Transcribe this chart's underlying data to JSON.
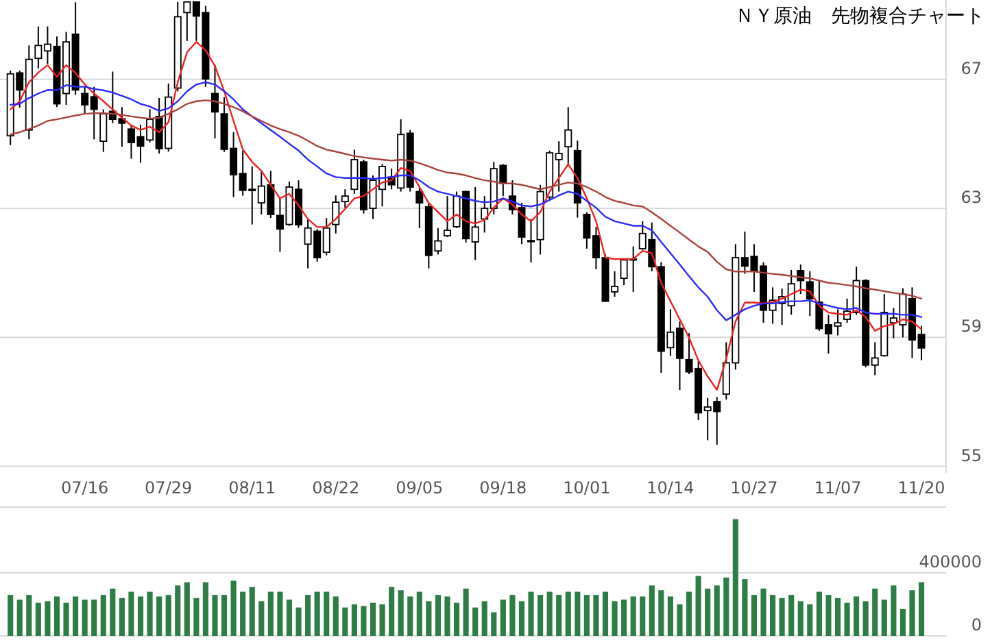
{
  "chart_data": [
    {
      "type": "candlestick",
      "title": "ＮＹ原油　先物複合チャート",
      "categories": [
        null,
        null,
        null,
        null,
        null,
        null,
        null,
        null,
        "07/16",
        null,
        null,
        null,
        null,
        null,
        null,
        null,
        null,
        "07/29",
        null,
        null,
        null,
        null,
        null,
        null,
        null,
        null,
        "08/11",
        null,
        null,
        null,
        null,
        null,
        null,
        null,
        null,
        "08/22",
        null,
        null,
        null,
        null,
        null,
        null,
        null,
        null,
        "09/05",
        null,
        null,
        null,
        null,
        null,
        null,
        null,
        null,
        "09/18",
        null,
        null,
        null,
        null,
        null,
        null,
        null,
        null,
        "10/01",
        null,
        null,
        null,
        null,
        null,
        null,
        null,
        null,
        "10/14",
        null,
        null,
        null,
        null,
        null,
        null,
        null,
        null,
        "10/27",
        null,
        null,
        null,
        null,
        null,
        null,
        null,
        null,
        "11/07",
        null,
        null,
        null,
        null,
        null,
        null,
        null,
        null,
        "11/20"
      ],
      "ohlc": [
        [
          65.25,
          67.27,
          64.96,
          67.17
        ],
        [
          67.2,
          67.27,
          66.12,
          66.67
        ],
        [
          65.43,
          68.05,
          65.14,
          67.62
        ],
        [
          67.65,
          68.64,
          67.34,
          68.05
        ],
        [
          67.88,
          68.64,
          67.48,
          68.09
        ],
        [
          68.02,
          68.33,
          66.14,
          66.24
        ],
        [
          66.56,
          68.47,
          66.21,
          68.16
        ],
        [
          68.4,
          69.39,
          66.52,
          66.67
        ],
        [
          66.56,
          66.77,
          65.93,
          66.21
        ],
        [
          66.46,
          66.77,
          65.14,
          66.07
        ],
        [
          65.08,
          66.07,
          64.75,
          65.93
        ],
        [
          66.01,
          67.24,
          65.64,
          65.76
        ],
        [
          65.78,
          66.14,
          64.91,
          65.64
        ],
        [
          65.46,
          65.57,
          64.54,
          65.04
        ],
        [
          65.22,
          65.6,
          64.41,
          64.93
        ],
        [
          65.12,
          66.07,
          65.04,
          65.76
        ],
        [
          65.85,
          66.42,
          64.7,
          64.85
        ],
        [
          64.86,
          66.87,
          64.76,
          66.45
        ],
        [
          66.73,
          69.4,
          66.63,
          68.94
        ],
        [
          69.07,
          69.4,
          68.19,
          69.4
        ],
        [
          69.4,
          69.4,
          68.19,
          68.96
        ],
        [
          69.07,
          69.28,
          66.77,
          67.01
        ],
        [
          66.56,
          67.44,
          65.17,
          65.99
        ],
        [
          65.93,
          66.45,
          64.75,
          64.83
        ],
        [
          64.86,
          65.36,
          63.35,
          64.04
        ],
        [
          64.08,
          64.79,
          63.39,
          63.56
        ],
        [
          63.59,
          64.3,
          62.5,
          63.55
        ],
        [
          63.17,
          64.16,
          62.81,
          63.69
        ],
        [
          63.73,
          64.16,
          62.7,
          62.81
        ],
        [
          62.78,
          63.31,
          61.65,
          62.36
        ],
        [
          62.5,
          63.83,
          62.46,
          63.66
        ],
        [
          63.59,
          63.87,
          62.39,
          62.49
        ],
        [
          61.89,
          62.67,
          61.14,
          62.39
        ],
        [
          62.29,
          62.36,
          61.35,
          61.47
        ],
        [
          61.64,
          62.7,
          61.54,
          62.39
        ],
        [
          62.5,
          63.4,
          62.22,
          63.19
        ],
        [
          63.21,
          63.59,
          63.02,
          63.38
        ],
        [
          63.59,
          64.82,
          63.45,
          64.51
        ],
        [
          64.44,
          64.51,
          62.84,
          62.96
        ],
        [
          63.0,
          64.02,
          62.67,
          63.87
        ],
        [
          63.59,
          64.37,
          63.06,
          64.3
        ],
        [
          63.97,
          64.23,
          63.59,
          63.73
        ],
        [
          63.63,
          65.76,
          63.52,
          65.29
        ],
        [
          65.33,
          65.43,
          63.52,
          63.66
        ],
        [
          63.52,
          63.63,
          62.39,
          63.17
        ],
        [
          63.05,
          63.17,
          61.14,
          61.54
        ],
        [
          61.68,
          62.39,
          61.57,
          61.99
        ],
        [
          62.15,
          63.38,
          62.11,
          62.32
        ],
        [
          62.43,
          63.52,
          62.39,
          63.38
        ],
        [
          63.52,
          63.55,
          61.94,
          62.06
        ],
        [
          61.96,
          63.66,
          61.4,
          62.42
        ],
        [
          62.67,
          63.38,
          62.25,
          63.0
        ],
        [
          63.0,
          64.44,
          62.81,
          64.23
        ],
        [
          64.33,
          64.37,
          63.38,
          63.77
        ],
        [
          63.38,
          63.87,
          62.81,
          62.96
        ],
        [
          63.02,
          63.17,
          61.89,
          62.11
        ],
        [
          62.0,
          62.67,
          61.32,
          61.99
        ],
        [
          62.03,
          63.73,
          61.57,
          63.52
        ],
        [
          63.35,
          64.79,
          63.26,
          64.72
        ],
        [
          64.51,
          65.08,
          63.52,
          64.7
        ],
        [
          64.91,
          66.14,
          64.3,
          65.43
        ],
        [
          64.79,
          65.1,
          62.71,
          63.17
        ],
        [
          62.81,
          62.88,
          61.75,
          62.08
        ],
        [
          62.15,
          62.42,
          61.11,
          61.47
        ],
        [
          61.47,
          61.57,
          60.1,
          60.12
        ],
        [
          60.41,
          61.05,
          60.26,
          60.58
        ],
        [
          60.83,
          61.43,
          60.62,
          61.4
        ],
        [
          61.43,
          61.82,
          60.41,
          61.4
        ],
        [
          61.75,
          62.6,
          61.71,
          62.22
        ],
        [
          62.03,
          62.56,
          61.05,
          61.19
        ],
        [
          61.19,
          61.33,
          57.9,
          58.57
        ],
        [
          58.68,
          59.87,
          58.43,
          59.16
        ],
        [
          59.28,
          59.49,
          57.37,
          58.35
        ],
        [
          58.31,
          59.13,
          57.86,
          57.93
        ],
        [
          58.03,
          58.26,
          56.44,
          56.66
        ],
        [
          56.73,
          57.12,
          55.81,
          56.84
        ],
        [
          57.01,
          57.15,
          55.67,
          56.7
        ],
        [
          57.24,
          58.85,
          57.07,
          58.21
        ],
        [
          58.21,
          61.89,
          58.0,
          61.47
        ],
        [
          61.47,
          62.28,
          60.97,
          61.21
        ],
        [
          61.51,
          61.89,
          60.41,
          61.05
        ],
        [
          61.21,
          61.33,
          59.45,
          59.84
        ],
        [
          59.84,
          60.55,
          59.42,
          60.15
        ],
        [
          60.05,
          60.51,
          59.39,
          60.26
        ],
        [
          59.98,
          61.09,
          59.7,
          60.66
        ],
        [
          61.07,
          61.26,
          60.34,
          60.76
        ],
        [
          60.72,
          61.05,
          59.66,
          60.2
        ],
        [
          60.09,
          60.76,
          59.2,
          59.27
        ],
        [
          59.39,
          59.7,
          58.5,
          59.11
        ],
        [
          59.35,
          59.87,
          59.06,
          59.45
        ],
        [
          59.56,
          60.2,
          59.45,
          59.81
        ],
        [
          59.77,
          61.19,
          59.7,
          60.76
        ],
        [
          60.76,
          60.8,
          58.07,
          58.14
        ],
        [
          58.14,
          58.85,
          57.83,
          58.36
        ],
        [
          58.43,
          60.34,
          58.4,
          59.77
        ],
        [
          59.45,
          59.91,
          58.97,
          59.6
        ],
        [
          59.39,
          60.52,
          59.0,
          60.34
        ],
        [
          60.2,
          60.55,
          58.36,
          58.92
        ],
        [
          59.09,
          59.35,
          58.29,
          58.67
        ]
      ],
      "series": [
        {
          "type": "line",
          "color": "#ee2222",
          "values": [
            66.07,
            66.32,
            66.91,
            67.21,
            67.44,
            67.08,
            67.44,
            67.2,
            66.84,
            66.56,
            66.32,
            66.07,
            65.81,
            65.57,
            65.43,
            65.53,
            65.36,
            65.67,
            66.91,
            67.84,
            68.16,
            67.9,
            67.41,
            66.63,
            65.71,
            64.83,
            64.44,
            64.16,
            63.73,
            63.31,
            63.45,
            63.09,
            62.67,
            62.42,
            62.42,
            62.67,
            62.98,
            63.31,
            63.38,
            63.59,
            63.8,
            63.87,
            64.25,
            64.16,
            63.66,
            63.17,
            62.88,
            62.6,
            62.81,
            62.6,
            62.53,
            62.64,
            63.02,
            63.31,
            63.12,
            62.81,
            62.6,
            62.88,
            63.52,
            63.94,
            64.37,
            63.94,
            63.31,
            62.6,
            61.47,
            61.43,
            61.43,
            61.43,
            61.68,
            61.61,
            60.69,
            60.12,
            59.56,
            58.99,
            58.29,
            57.79,
            57.37,
            58.34,
            59.49,
            60.08,
            60.08,
            60.05,
            60.09,
            60.2,
            60.34,
            60.48,
            60.43,
            59.98,
            59.77,
            59.73,
            59.7,
            59.84,
            59.63,
            59.2,
            59.35,
            59.41,
            59.56,
            59.49,
            59.25
          ]
        },
        {
          "type": "line",
          "color": "#2b2bff",
          "values": [
            66.21,
            66.24,
            66.42,
            66.56,
            66.67,
            66.66,
            66.82,
            66.77,
            66.77,
            66.7,
            66.66,
            66.59,
            66.49,
            66.38,
            66.24,
            66.16,
            66.02,
            66.1,
            66.32,
            66.63,
            66.84,
            66.91,
            66.84,
            66.63,
            66.38,
            66.07,
            65.85,
            65.64,
            65.43,
            65.22,
            65.0,
            64.79,
            64.51,
            64.3,
            64.08,
            63.97,
            63.94,
            63.94,
            63.94,
            63.91,
            63.94,
            63.97,
            64.02,
            64.02,
            63.87,
            63.66,
            63.52,
            63.45,
            63.38,
            63.31,
            63.23,
            63.19,
            63.21,
            63.31,
            63.21,
            63.09,
            63.06,
            63.12,
            63.26,
            63.4,
            63.52,
            63.45,
            63.23,
            63.02,
            62.74,
            62.6,
            62.53,
            62.46,
            62.46,
            62.32,
            61.96,
            61.61,
            61.26,
            60.9,
            60.55,
            60.26,
            59.84,
            59.53,
            59.7,
            59.87,
            59.98,
            60.05,
            60.05,
            60.09,
            60.12,
            60.12,
            60.15,
            60.05,
            59.98,
            59.91,
            59.87,
            59.91,
            59.77,
            59.73,
            59.73,
            59.73,
            59.7,
            59.7,
            59.63
          ]
        },
        {
          "type": "line",
          "color": "#a8433c",
          "values": [
            65.29,
            65.36,
            65.46,
            65.57,
            65.71,
            65.76,
            65.82,
            65.88,
            65.93,
            65.95,
            65.95,
            65.93,
            65.9,
            65.85,
            65.81,
            65.78,
            65.81,
            65.93,
            66.07,
            66.24,
            66.32,
            66.35,
            66.32,
            66.24,
            66.14,
            66.01,
            65.85,
            65.71,
            65.57,
            65.46,
            65.36,
            65.25,
            65.1,
            64.93,
            64.82,
            64.76,
            64.69,
            64.62,
            64.58,
            64.54,
            64.51,
            64.48,
            64.51,
            64.48,
            64.4,
            64.3,
            64.19,
            64.11,
            64.08,
            64.02,
            63.94,
            63.87,
            63.83,
            63.77,
            63.77,
            63.73,
            63.66,
            63.59,
            63.66,
            63.73,
            63.8,
            63.77,
            63.66,
            63.52,
            63.35,
            63.23,
            63.17,
            63.09,
            63.06,
            62.88,
            62.67,
            62.46,
            62.25,
            62.03,
            61.82,
            61.65,
            61.34,
            61.11,
            61.04,
            61.04,
            61.04,
            61.0,
            60.97,
            60.94,
            60.9,
            60.86,
            60.83,
            60.76,
            60.69,
            60.66,
            60.62,
            60.58,
            60.52,
            60.48,
            60.43,
            60.38,
            60.34,
            60.29,
            60.2
          ]
        }
      ],
      "ylim": [
        54.8,
        69.46
      ],
      "yticks": [
        55,
        59,
        63,
        67
      ],
      "grid": "y"
    },
    {
      "type": "bar",
      "color": "#2e7d46",
      "categories": [
        null,
        null,
        null,
        null,
        null,
        null,
        null,
        null,
        null,
        null,
        null,
        null,
        null,
        null,
        null,
        null,
        null,
        null,
        null,
        null,
        null,
        null,
        null,
        null,
        null,
        null,
        null,
        null,
        null,
        null,
        null,
        null,
        null,
        null,
        null,
        null,
        null,
        null,
        null,
        null,
        null,
        null,
        null,
        null,
        null,
        null,
        null,
        null,
        null,
        null,
        null,
        null,
        null,
        null,
        null,
        null,
        null,
        null,
        null,
        null,
        null,
        null,
        null,
        null,
        null,
        null,
        null,
        null,
        null,
        null,
        null,
        null,
        null,
        null,
        null,
        null,
        null,
        null,
        null,
        null,
        null,
        null,
        null,
        null,
        null,
        null,
        null,
        null,
        null,
        null,
        null,
        null,
        null,
        null,
        null,
        null,
        null,
        null,
        null
      ],
      "values": [
        260000,
        230000,
        260000,
        210000,
        220000,
        250000,
        210000,
        250000,
        230000,
        230000,
        260000,
        300000,
        240000,
        280000,
        250000,
        280000,
        250000,
        260000,
        320000,
        340000,
        240000,
        340000,
        260000,
        260000,
        350000,
        280000,
        310000,
        220000,
        280000,
        280000,
        230000,
        180000,
        260000,
        280000,
        280000,
        250000,
        180000,
        200000,
        190000,
        210000,
        200000,
        310000,
        290000,
        250000,
        280000,
        220000,
        260000,
        250000,
        210000,
        300000,
        180000,
        220000,
        150000,
        230000,
        260000,
        220000,
        280000,
        260000,
        280000,
        260000,
        280000,
        280000,
        260000,
        260000,
        280000,
        220000,
        230000,
        250000,
        250000,
        320000,
        290000,
        250000,
        200000,
        280000,
        380000,
        300000,
        320000,
        370000,
        740000,
        360000,
        260000,
        300000,
        260000,
        240000,
        260000,
        220000,
        200000,
        280000,
        260000,
        240000,
        210000,
        250000,
        220000,
        300000,
        230000,
        320000,
        170000,
        290000,
        340000
      ],
      "ylim": [
        0,
        817000
      ],
      "yticks": [
        0,
        400000
      ],
      "grid": "y",
      "tick_labels": "y"
    }
  ]
}
